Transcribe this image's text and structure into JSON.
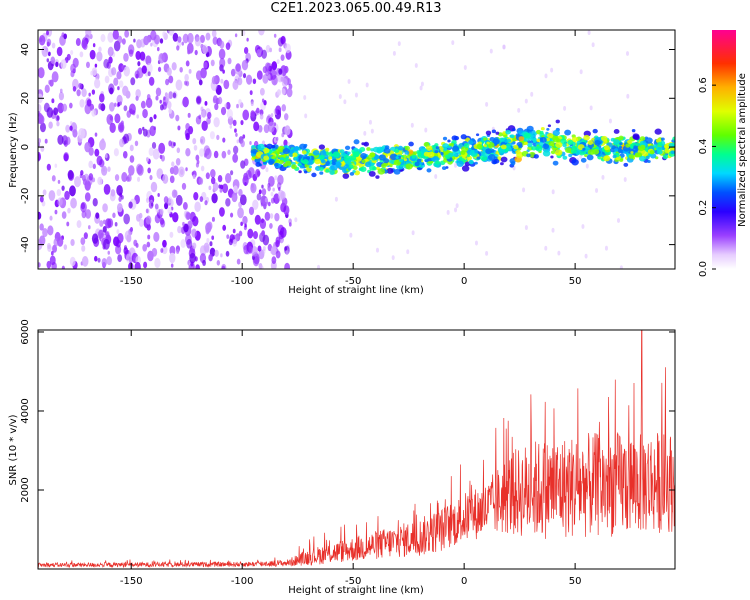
{
  "title": "C2E1.2023.065.00.49.R13",
  "spectrogram": {
    "type": "heatmap",
    "xlabel": "Height of straight line (km)",
    "ylabel": "Frequency (Hz)",
    "xlim": [
      -192,
      95
    ],
    "ylim": [
      -50,
      48
    ],
    "xticks": [
      -150,
      -100,
      -50,
      0,
      50
    ],
    "yticks": [
      -40,
      -20,
      0,
      20,
      40
    ],
    "colorbar": {
      "label": "Normalized spectral amplitude",
      "range": [
        0.0,
        0.78
      ],
      "ticks": [
        0.0,
        0.2,
        0.4,
        0.6
      ]
    },
    "ridge": {
      "note_x": [
        -95,
        -75,
        -50,
        -25,
        0,
        25,
        30,
        50,
        75,
        92
      ],
      "freq_center": [
        -3,
        -5,
        -6,
        -4,
        -2,
        2,
        4,
        0,
        -1,
        0
      ],
      "freq_halfwidth": [
        4,
        6,
        7,
        6,
        6,
        7,
        9,
        6,
        6,
        5
      ]
    }
  },
  "snr": {
    "type": "line",
    "xlabel": "Height of straight line (km)",
    "ylabel": "SNR (10 * v/v)",
    "xlim": [
      -192,
      95
    ],
    "ylim": [
      0,
      6050
    ],
    "xticks": [
      -150,
      -100,
      -50,
      0,
      50
    ],
    "yticks": [
      2000,
      4000,
      6000
    ],
    "color": "#e8302a",
    "envelope_x": [
      -192,
      -100,
      -80,
      -70,
      -50,
      -30,
      -20,
      -10,
      0,
      10,
      20,
      30,
      50,
      70,
      80,
      95
    ],
    "envelope_mean": [
      100,
      120,
      150,
      300,
      500,
      700,
      800,
      1000,
      1300,
      1500,
      1900,
      2000,
      2100,
      2150,
      2200,
      2200
    ],
    "envelope_amp": [
      80,
      90,
      120,
      300,
      450,
      600,
      700,
      800,
      900,
      1000,
      1500,
      1800,
      1900,
      1900,
      1900,
      1800
    ],
    "peak_x": [
      80
    ],
    "peak_y": [
      6050
    ]
  }
}
